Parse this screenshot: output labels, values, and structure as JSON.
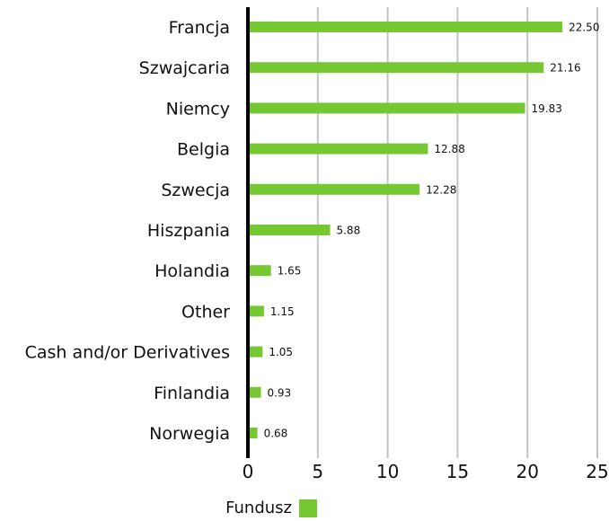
{
  "chart_data": {
    "type": "bar",
    "orientation": "horizontal",
    "categories": [
      "Francja",
      "Szwajcaria",
      "Niemcy",
      "Belgia",
      "Szwecja",
      "Hiszpania",
      "Holandia",
      "Other",
      "Cash and/or Derivatives",
      "Finlandia",
      "Norwegia"
    ],
    "series": [
      {
        "name": "Fundusz",
        "values": [
          22.5,
          21.16,
          19.83,
          12.88,
          12.28,
          5.88,
          1.65,
          1.15,
          1.05,
          0.93,
          0.68
        ],
        "labels": [
          "22.50",
          "21.16",
          "19.83",
          "12.88",
          "12.28",
          "5.88",
          "1.65",
          "1.15",
          "1.05",
          "0.93",
          "0.68"
        ]
      }
    ],
    "xlim": [
      0,
      25
    ],
    "ticks": [
      "0",
      "5",
      "10",
      "15",
      "20",
      "25"
    ],
    "grid": true,
    "legend": "bottom-center",
    "colors": {
      "bar": "#76c832",
      "grid": "#c4c4c4",
      "axis": "#000000"
    }
  }
}
